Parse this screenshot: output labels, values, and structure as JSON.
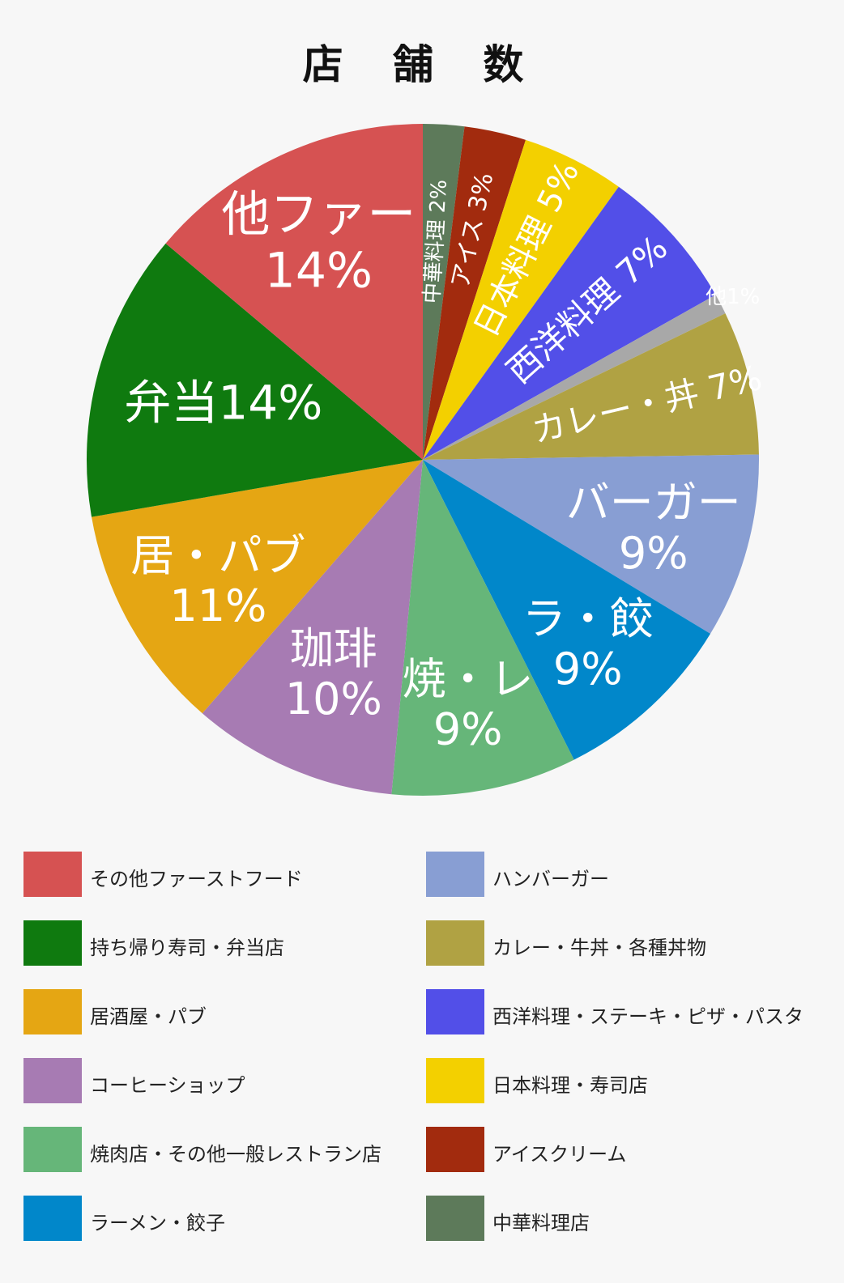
{
  "chart_data": {
    "type": "pie",
    "title": "店 舗 数",
    "slices": [
      {
        "name": "中華料理店",
        "short_label": "中華料理",
        "value": 2,
        "color": "#5d7a5a"
      },
      {
        "name": "アイスクリーム",
        "short_label": "アイス",
        "value": 3,
        "color": "#a22b0e"
      },
      {
        "name": "日本料理・寿司店",
        "short_label": "日本料理",
        "value": 5,
        "color": "#f3d000"
      },
      {
        "name": "西洋料理・ステーキ・ピザ・パスタ",
        "short_label": "西洋料理",
        "value": 7,
        "color": "#524fe8"
      },
      {
        "name": "その他",
        "short_label": "他",
        "value": 1,
        "color": "#a8a8a8"
      },
      {
        "name": "カレー・牛丼・各種丼物",
        "short_label": "カレー・丼",
        "value": 7,
        "color": "#b0a243"
      },
      {
        "name": "ハンバーガー",
        "short_label": "バーガー",
        "value": 9,
        "color": "#889ed3"
      },
      {
        "name": "ラーメン・餃子",
        "short_label": "ラ・餃",
        "value": 9,
        "color": "#0187ca"
      },
      {
        "name": "焼肉店・その他一般レストラン店",
        "short_label": "焼・レ",
        "value": 9,
        "color": "#66b679"
      },
      {
        "name": "コーヒーショップ",
        "short_label": "珈琲",
        "value": 10,
        "color": "#a77bb3"
      },
      {
        "name": "居酒屋・パブ",
        "short_label": "居・パブ",
        "value": 11,
        "color": "#e5a613"
      },
      {
        "name": "持ち帰り寿司・弁当店",
        "short_label": "弁当",
        "value": 14,
        "color": "#0f7a0f"
      },
      {
        "name": "その他ファーストフード",
        "short_label": "他ファー",
        "value": 14,
        "color": "#d65252"
      }
    ],
    "unit": "%",
    "start": "top",
    "direction": "clockwise",
    "legend": "bottom, two columns",
    "legend_left": [
      "その他ファーストフード",
      "持ち帰り寿司・弁当店",
      "居酒屋・パブ",
      "コーヒーショップ",
      "焼肉店・その他一般レストラン店",
      "ラーメン・餃子"
    ],
    "legend_right": [
      "ハンバーガー",
      "カレー・牛丼・各種丼物",
      "西洋料理・ステーキ・ピザ・パスタ",
      "日本料理・寿司店",
      "アイスクリーム",
      "中華料理店"
    ]
  }
}
